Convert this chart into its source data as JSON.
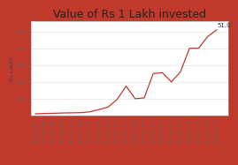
{
  "title": "Value of Rs 1 Lakh invested",
  "ylabel": "Rs Lakhs",
  "background_color": "#ffffff",
  "border_color": "#c0392b",
  "line_color": "#c0392b",
  "annotation": "51.0",
  "x_labels": [
    "01-Jun-97",
    "01-Jun-98",
    "01-Jun-99",
    "01-Jun-00",
    "01-Jun-01",
    "01-Jun-02",
    "01-Jun-03",
    "01-Jun-04",
    "01-Jun-05",
    "01-Jun-06",
    "01-Jun-07",
    "01-Jun-08",
    "01-Jun-09",
    "01-Jun-10",
    "01-Jun-11",
    "01-Jun-12",
    "01-Jun-13",
    "01-Jun-14",
    "01-Jun-15",
    "01-Jun-16",
    "01-Jun-17"
  ],
  "y_values": [
    1.0,
    1.2,
    1.3,
    1.5,
    1.6,
    1.7,
    2.2,
    3.5,
    5.0,
    9.5,
    17.5,
    10.0,
    10.5,
    25.0,
    25.5,
    20.0,
    26.0,
    40.0,
    40.0,
    47.0,
    51.0
  ],
  "yticks": [
    10.0,
    20.0,
    30.0,
    40.0,
    50.0
  ],
  "ytick_labels": [
    "10.0",
    "20.0",
    "30.0",
    "40.0",
    "50.0"
  ],
  "ylim": [
    0,
    56
  ],
  "title_fontsize": 9,
  "label_fontsize": 4.5,
  "tick_fontsize": 4.0,
  "annotation_fontsize": 5,
  "border_thickness": 6
}
